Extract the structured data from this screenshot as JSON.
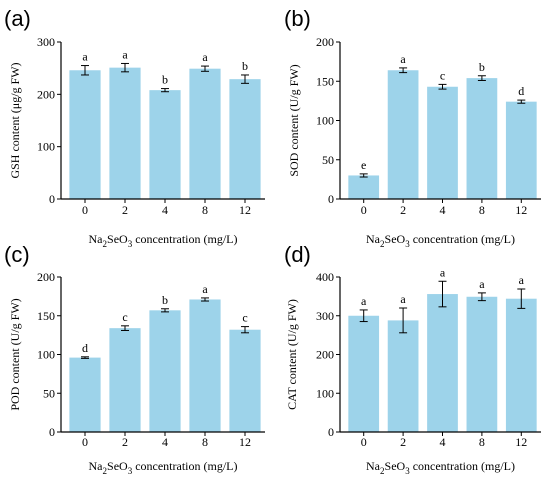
{
  "bar_color": "#9dd3ea",
  "axis_color": "#000000",
  "xlabel_prefix": "Na",
  "xlabel_sub1": "2",
  "xlabel_mid": "SeO",
  "xlabel_sub2": "3",
  "xlabel_suffix": " concentration (mg/L)",
  "chart_data": [
    {
      "panel_label": "(a)",
      "type": "bar",
      "categories": [
        "0",
        "2",
        "4",
        "8",
        "12"
      ],
      "values": [
        246,
        251,
        208,
        249,
        229
      ],
      "errors": [
        9,
        8,
        3,
        5,
        8
      ],
      "letters": [
        "a",
        "a",
        "b",
        "a",
        "b"
      ],
      "ylabel": "GSH content (μg/g FW)",
      "ylim": [
        0,
        300
      ],
      "yticks": [
        "0",
        "100",
        "200",
        "300"
      ],
      "xlabel": "Na2SeO3 concentration (mg/L)"
    },
    {
      "panel_label": "(b)",
      "type": "bar",
      "categories": [
        "0",
        "2",
        "4",
        "8",
        "12"
      ],
      "values": [
        30,
        164,
        143,
        154,
        124
      ],
      "errors": [
        2,
        3,
        3,
        3,
        2
      ],
      "letters": [
        "e",
        "a",
        "c",
        "b",
        "d"
      ],
      "ylabel": "SOD content (U/g FW)",
      "ylim": [
        0,
        200
      ],
      "yticks": [
        "0",
        "50",
        "100",
        "150",
        "200"
      ],
      "xlabel": "Na2SeO3 concentration (mg/L)"
    },
    {
      "panel_label": "(c)",
      "type": "bar",
      "categories": [
        "0",
        "2",
        "4",
        "8",
        "12"
      ],
      "values": [
        96,
        134,
        157,
        171,
        132
      ],
      "errors": [
        1,
        3,
        2,
        2,
        4
      ],
      "letters": [
        "d",
        "c",
        "b",
        "a",
        "c"
      ],
      "ylabel": "POD content (U/g FW)",
      "ylim": [
        0,
        200
      ],
      "yticks": [
        "0",
        "50",
        "100",
        "150",
        "200"
      ],
      "xlabel": "Na2SeO3 concentration (mg/L)"
    },
    {
      "panel_label": "(d)",
      "type": "bar",
      "categories": [
        "0",
        "2",
        "4",
        "8",
        "12"
      ],
      "values": [
        300,
        288,
        356,
        349,
        344
      ],
      "errors": [
        15,
        32,
        33,
        10,
        25
      ],
      "letters": [
        "a",
        "a",
        "a",
        "a",
        "a"
      ],
      "ylabel": "CAT content (U/g FW)",
      "ylim": [
        0,
        400
      ],
      "yticks": [
        "0",
        "100",
        "200",
        "300",
        "400"
      ],
      "xlabel": "Na2SeO3 concentration (mg/L)"
    }
  ]
}
